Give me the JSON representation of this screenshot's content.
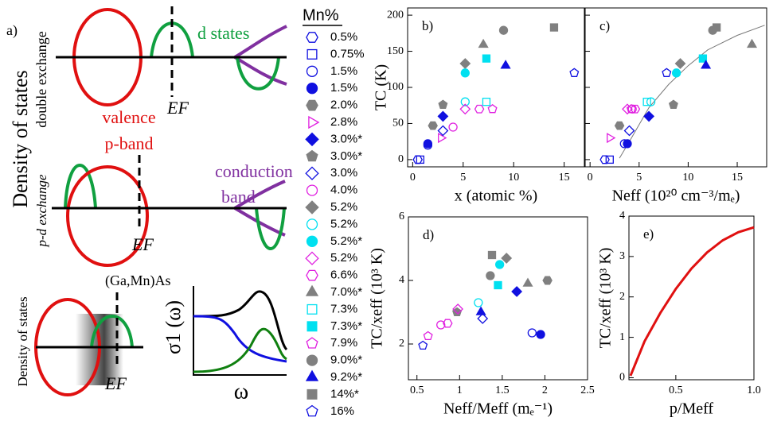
{
  "diagram": {
    "panel_label": "a)",
    "dos_title": "Density of states",
    "double_exchange": "double exchange",
    "pd_exchange": "p-d exchange",
    "valence": "valence",
    "p_band": "p-band",
    "d_states": "d states",
    "ef_1": "EF",
    "ef_2": "EF",
    "ef_3": "EF",
    "conduction": "conduction",
    "band": "band",
    "dos_small": "Density of states",
    "gamnas": "(Ga,Mn)As",
    "sigma_label": "σ1 (ω)",
    "omega_label": "ω"
  },
  "legend_title": "Mn%",
  "chart_data": [
    {
      "type": "scatter",
      "panel_label": "b)",
      "xlabel": "x (atomic %)",
      "ylabel": "TC (K)",
      "xlim": [
        -0.5,
        17
      ],
      "ylim": [
        -10,
        210
      ],
      "xticks": [
        0,
        5,
        10,
        15
      ],
      "yticks": [
        0,
        50,
        100,
        150,
        200
      ],
      "series": [
        {
          "name": "0.5%",
          "color": "#1010e0",
          "marker": "hexagon",
          "filled": false,
          "x": [
            0.5
          ],
          "values": [
            0
          ]
        },
        {
          "name": "0.75%",
          "color": "#1010e0",
          "marker": "square",
          "filled": false,
          "x": [
            0.75
          ],
          "values": [
            0
          ]
        },
        {
          "name": "1.5%",
          "color": "#1010e0",
          "marker": "circle",
          "filled": false,
          "x": [
            1.5
          ],
          "values": [
            20
          ]
        },
        {
          "name": "1.5%",
          "color": "#1010e0",
          "marker": "circle",
          "filled": true,
          "x": [
            1.5
          ],
          "values": [
            22
          ]
        },
        {
          "name": "2.0%",
          "color": "#808080",
          "marker": "hexagon",
          "filled": true,
          "x": [
            2.0
          ],
          "values": [
            47
          ]
        },
        {
          "name": "2.8%",
          "color": "#e020e0",
          "marker": "triangle-right",
          "filled": false,
          "x": [
            2.8
          ],
          "values": [
            30
          ]
        },
        {
          "name": "3.0%*",
          "color": "#1010e0",
          "marker": "diamond",
          "filled": true,
          "x": [
            3.0
          ],
          "values": [
            60
          ]
        },
        {
          "name": "3.0%*",
          "color": "#808080",
          "marker": "pentagon",
          "filled": true,
          "x": [
            3.0
          ],
          "values": [
            76
          ]
        },
        {
          "name": "3.0%",
          "color": "#1010e0",
          "marker": "diamond",
          "filled": false,
          "x": [
            3.0
          ],
          "values": [
            40
          ]
        },
        {
          "name": "4.0%",
          "color": "#e020e0",
          "marker": "circle",
          "filled": false,
          "x": [
            4.0
          ],
          "values": [
            45
          ]
        },
        {
          "name": "5.2%",
          "color": "#808080",
          "marker": "diamond",
          "filled": true,
          "x": [
            5.2
          ],
          "values": [
            133
          ]
        },
        {
          "name": "5.2%",
          "color": "#00e0f0",
          "marker": "circle",
          "filled": false,
          "x": [
            5.2
          ],
          "values": [
            80
          ]
        },
        {
          "name": "5.2%*",
          "color": "#00e0f0",
          "marker": "circle",
          "filled": true,
          "x": [
            5.2
          ],
          "values": [
            120
          ]
        },
        {
          "name": "5.2%",
          "color": "#e020e0",
          "marker": "diamond",
          "filled": false,
          "x": [
            5.2
          ],
          "values": [
            70
          ]
        },
        {
          "name": "6.6%",
          "color": "#e020e0",
          "marker": "hexagon",
          "filled": false,
          "x": [
            6.6
          ],
          "values": [
            70
          ]
        },
        {
          "name": "7.0%*",
          "color": "#808080",
          "marker": "triangle-up",
          "filled": true,
          "x": [
            7.0
          ],
          "values": [
            159
          ]
        },
        {
          "name": "7.3%",
          "color": "#00e0f0",
          "marker": "square",
          "filled": false,
          "x": [
            7.3
          ],
          "values": [
            80
          ]
        },
        {
          "name": "7.3%*",
          "color": "#00e0f0",
          "marker": "square",
          "filled": true,
          "x": [
            7.3
          ],
          "values": [
            140
          ]
        },
        {
          "name": "7.9%",
          "color": "#e020e0",
          "marker": "pentagon",
          "filled": false,
          "x": [
            7.9
          ],
          "values": [
            70
          ]
        },
        {
          "name": "9.0%*",
          "color": "#808080",
          "marker": "circle",
          "filled": true,
          "x": [
            9.0
          ],
          "values": [
            179
          ]
        },
        {
          "name": "9.2%*",
          "color": "#1010e0",
          "marker": "triangle-up",
          "filled": true,
          "x": [
            9.2
          ],
          "values": [
            130
          ]
        },
        {
          "name": "14%*",
          "color": "#808080",
          "marker": "square",
          "filled": true,
          "x": [
            14
          ],
          "values": [
            183
          ]
        },
        {
          "name": "16%",
          "color": "#1010e0",
          "marker": "pentagon",
          "filled": false,
          "x": [
            16
          ],
          "values": [
            120
          ]
        }
      ]
    },
    {
      "type": "scatter",
      "panel_label": "c)",
      "xlabel": "Neff (10²⁰ cm⁻³/mₑ)",
      "xlim": [
        -0.5,
        18
      ],
      "ylim": [
        -10,
        210
      ],
      "xticks": [
        0,
        5,
        10,
        15
      ],
      "yticks": [
        0,
        50,
        100,
        150,
        200
      ],
      "fit": {
        "color": "#777777",
        "x": [
          3.0,
          4,
          6,
          8,
          10,
          12,
          15,
          17.8
        ],
        "values": [
          2,
          25,
          72,
          104,
          130,
          152,
          172,
          186
        ]
      },
      "series": [
        {
          "x": [
            1.5
          ],
          "values": [
            0
          ]
        },
        {
          "x": [
            2.0
          ],
          "values": [
            0
          ]
        },
        {
          "x": [
            3.5
          ],
          "values": [
            22
          ]
        },
        {
          "x": [
            3.8
          ],
          "values": [
            22
          ]
        },
        {
          "x": [
            3.0
          ],
          "values": [
            47
          ]
        },
        {
          "x": [
            2.0
          ],
          "values": [
            30
          ]
        },
        {
          "x": [
            6.0
          ],
          "values": [
            60
          ]
        },
        {
          "x": [
            8.5
          ],
          "values": [
            76
          ]
        },
        {
          "x": [
            4.0
          ],
          "values": [
            40
          ]
        },
        {
          "x": [
            4.3
          ],
          "values": [
            70
          ]
        },
        {
          "x": [
            9.2
          ],
          "values": [
            133
          ]
        },
        {
          "x": [
            6.2
          ],
          "values": [
            80
          ]
        },
        {
          "x": [
            8.8
          ],
          "values": [
            120
          ]
        },
        {
          "x": [
            3.8
          ],
          "values": [
            70
          ]
        },
        {
          "x": [
            4.6
          ],
          "values": [
            70
          ]
        },
        {
          "x": [
            16.5
          ],
          "values": [
            159
          ]
        },
        {
          "x": [
            5.8
          ],
          "values": [
            80
          ]
        },
        {
          "x": [
            11.5
          ],
          "values": [
            140
          ]
        },
        {
          "x": [
            4.2
          ],
          "values": [
            70
          ]
        },
        {
          "x": [
            12.5
          ],
          "values": [
            179
          ]
        },
        {
          "x": [
            11.8
          ],
          "values": [
            130
          ]
        },
        {
          "x": [
            12.9
          ],
          "values": [
            183
          ]
        },
        {
          "x": [
            7.8
          ],
          "values": [
            120
          ]
        }
      ]
    },
    {
      "type": "scatter",
      "panel_label": "d)",
      "xlabel": "Neff/Meff (mₑ⁻¹)",
      "ylabel": "TC/xeff (10³ K)",
      "xlim": [
        0.4,
        2.5
      ],
      "ylim": [
        0.875,
        6
      ],
      "xticks": [
        0.5,
        1,
        1.5,
        2,
        2.5
      ],
      "yticks": [
        2,
        4,
        6
      ],
      "series": [
        {
          "x": [
            null
          ],
          "values": [
            null
          ]
        },
        {
          "x": [
            null
          ],
          "values": [
            null
          ]
        },
        {
          "x": [
            1.85
          ],
          "values": [
            2.35
          ]
        },
        {
          "x": [
            1.95
          ],
          "values": [
            2.3
          ]
        },
        {
          "x": [
            2.03
          ],
          "values": [
            4.0
          ]
        },
        {
          "x": [
            null
          ],
          "values": [
            null
          ]
        },
        {
          "x": [
            1.67
          ],
          "values": [
            3.65
          ]
        },
        {
          "x": [
            0.97
          ],
          "values": [
            3.0
          ]
        },
        {
          "x": [
            1.27
          ],
          "values": [
            2.8
          ]
        },
        {
          "x": [
            0.78
          ],
          "values": [
            2.6
          ]
        },
        {
          "x": [
            1.55
          ],
          "values": [
            4.7
          ]
        },
        {
          "x": [
            1.22
          ],
          "values": [
            3.3
          ]
        },
        {
          "x": [
            1.47
          ],
          "values": [
            4.5
          ]
        },
        {
          "x": [
            0.98
          ],
          "values": [
            3.1
          ]
        },
        {
          "x": [
            0.86
          ],
          "values": [
            2.65
          ]
        },
        {
          "x": [
            1.8
          ],
          "values": [
            3.9
          ]
        },
        {
          "x": [
            null
          ],
          "values": [
            null
          ]
        },
        {
          "x": [
            1.45
          ],
          "values": [
            3.85
          ]
        },
        {
          "x": [
            0.63
          ],
          "values": [
            2.25
          ]
        },
        {
          "x": [
            1.36
          ],
          "values": [
            4.15
          ]
        },
        {
          "x": [
            1.25
          ],
          "values": [
            3.0
          ]
        },
        {
          "x": [
            1.38
          ],
          "values": [
            4.8
          ]
        },
        {
          "x": [
            0.57
          ],
          "values": [
            1.95
          ]
        }
      ]
    },
    {
      "type": "line",
      "panel_label": "e)",
      "xlabel": "p/Meff",
      "ylabel": "TC/xeff (10³ K)",
      "color": "#e01010",
      "xlim": [
        0.2,
        1.0
      ],
      "ylim": [
        -0.05,
        4
      ],
      "xticks": [
        0.5,
        {
          "value": 1,
          "label": "1.0"
        }
      ],
      "yticks": [
        0,
        1,
        2,
        3,
        4
      ],
      "x": [
        0.21,
        0.3,
        0.4,
        0.5,
        0.6,
        0.7,
        0.8,
        0.9,
        1.0
      ],
      "values": [
        0.05,
        0.9,
        1.6,
        2.2,
        2.7,
        3.1,
        3.4,
        3.6,
        3.72
      ]
    }
  ]
}
